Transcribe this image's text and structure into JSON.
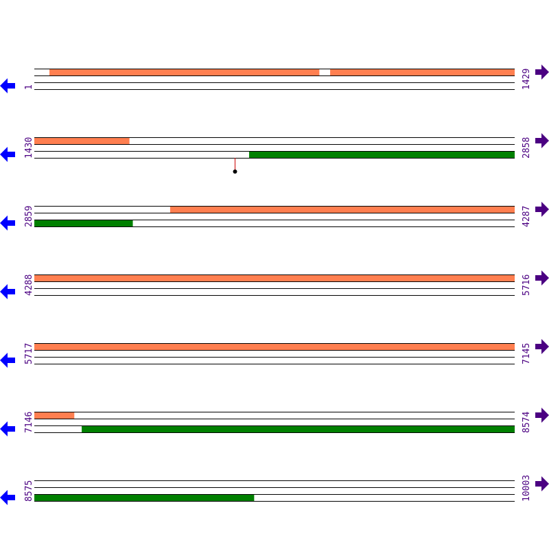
{
  "rows": [
    {
      "start": "1",
      "end": "1429"
    },
    {
      "start": "1430",
      "end": "2858"
    },
    {
      "start": "2859",
      "end": "4287"
    },
    {
      "start": "4288",
      "end": "5716"
    },
    {
      "start": "5717",
      "end": "7145"
    },
    {
      "start": "7146",
      "end": "8574"
    },
    {
      "start": "8575",
      "end": "10003"
    }
  ],
  "features": [
    {
      "strand": "forward",
      "color": "#ff7f50",
      "from": 46,
      "to": 848
    },
    {
      "strand": "forward",
      "color": "#ff7f50",
      "from": 881,
      "to": 1712
    },
    {
      "strand": "forward",
      "color": "#ff7f50",
      "from": 3263,
      "to": 7264
    },
    {
      "strand": "reverse",
      "color": "#008000",
      "from": 2069,
      "to": 3151
    },
    {
      "strand": "reverse",
      "color": "#008000",
      "from": 7287,
      "to": 9228
    }
  ],
  "markers": [
    {
      "position": 2026,
      "color": "#cc0000"
    }
  ],
  "colors": {
    "label": "#4b0082",
    "left_arrow": "#0000ff",
    "right_arrow": "#4b0082"
  },
  "icons": {
    "left": "arrow-left-icon",
    "right": "arrow-right-icon"
  }
}
